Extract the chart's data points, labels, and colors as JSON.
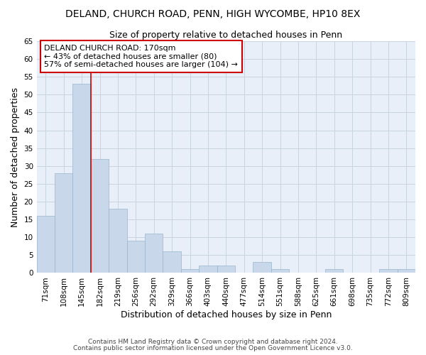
{
  "title": "DELAND, CHURCH ROAD, PENN, HIGH WYCOMBE, HP10 8EX",
  "subtitle": "Size of property relative to detached houses in Penn",
  "xlabel": "Distribution of detached houses by size in Penn",
  "ylabel": "Number of detached properties",
  "bar_color": "#c8d8ea",
  "bar_edge_color": "#9ab4cc",
  "bin_labels": [
    "71sqm",
    "108sqm",
    "145sqm",
    "182sqm",
    "219sqm",
    "256sqm",
    "292sqm",
    "329sqm",
    "366sqm",
    "403sqm",
    "440sqm",
    "477sqm",
    "514sqm",
    "551sqm",
    "588sqm",
    "625sqm",
    "661sqm",
    "698sqm",
    "735sqm",
    "772sqm",
    "809sqm"
  ],
  "bar_heights": [
    16,
    28,
    53,
    32,
    18,
    9,
    11,
    6,
    1,
    2,
    2,
    0,
    3,
    1,
    0,
    0,
    1,
    0,
    0,
    1,
    1
  ],
  "ylim": [
    0,
    65
  ],
  "yticks": [
    0,
    5,
    10,
    15,
    20,
    25,
    30,
    35,
    40,
    45,
    50,
    55,
    60,
    65
  ],
  "property_line_x": 2.5,
  "property_line_color": "#cc0000",
  "annotation_line1": "DELAND CHURCH ROAD: 170sqm",
  "annotation_line2": "← 43% of detached houses are smaller (80)",
  "annotation_line3": "57% of semi-detached houses are larger (104) →",
  "annotation_box_color": "#ffffff",
  "annotation_border_color": "#cc0000",
  "footnote1": "Contains HM Land Registry data © Crown copyright and database right 2024.",
  "footnote2": "Contains public sector information licensed under the Open Government Licence v3.0.",
  "background_color": "#ffffff",
  "plot_bg_color": "#e8eff8",
  "grid_color": "#c8d4e0",
  "title_fontsize": 10,
  "subtitle_fontsize": 9,
  "axis_label_fontsize": 9,
  "tick_fontsize": 7.5,
  "annotation_fontsize": 8,
  "footnote_fontsize": 6.5
}
